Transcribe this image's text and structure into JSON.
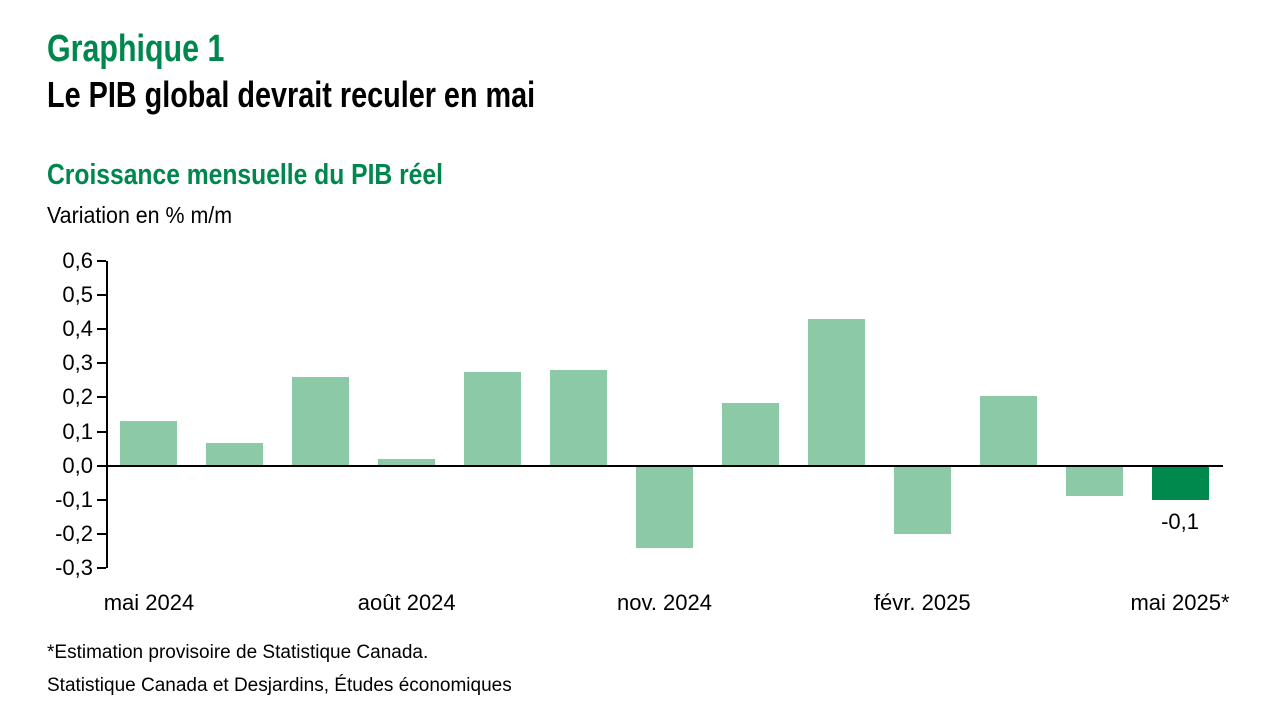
{
  "header": {
    "kicker": "Graphique 1",
    "title": "Le PIB global devrait reculer en mai"
  },
  "chart_header": {
    "title": "Croissance mensuelle du PIB réel",
    "units": "Variation en % m/m"
  },
  "footnotes": {
    "note": "*Estimation provisoire de Statistique Canada.",
    "source": "Statistique Canada et Desjardins, Études économiques"
  },
  "colors": {
    "accent_green": "#00874e",
    "bar_light": "#8cc9a6",
    "bar_highlight": "#00894d",
    "text": "#000000",
    "axis": "#000000"
  },
  "chart_data": {
    "type": "bar",
    "title": "Croissance mensuelle du PIB réel",
    "ylabel": "Variation en % m/m",
    "ylim": [
      -0.3,
      0.6
    ],
    "ytick_step": 0.1,
    "decimal_separator": ",",
    "grid": false,
    "legend": "none",
    "values": [
      0.13,
      0.065,
      0.26,
      0.02,
      0.275,
      0.28,
      -0.24,
      0.185,
      0.43,
      -0.2,
      0.205,
      -0.09,
      -0.1
    ],
    "highlight_index": 12,
    "xticks": [
      {
        "index": 0,
        "label": "mai 2024"
      },
      {
        "index": 3,
        "label": "août 2024"
      },
      {
        "index": 6,
        "label": "nov. 2024"
      },
      {
        "index": 9,
        "label": "févr. 2025"
      },
      {
        "index": 12,
        "label": "mai 2025*"
      }
    ],
    "annotations": [
      {
        "index": 12,
        "text": "-0,1"
      }
    ]
  }
}
